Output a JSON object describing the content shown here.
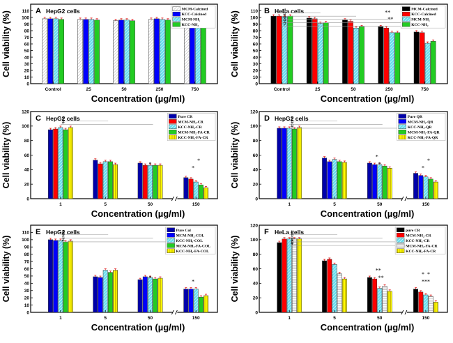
{
  "chart_data": [
    {
      "id": "A",
      "panel_label": "A",
      "title": "HepG2 cells",
      "type": "bar",
      "ylabel": "Cell viability (%)",
      "xlabel": "Concentration (µg/ml)",
      "ylim": [
        0,
        120
      ],
      "yticks": [
        0,
        10,
        20,
        30,
        40,
        50,
        60,
        70,
        80,
        90,
        100,
        110
      ],
      "categories": [
        "Control",
        "25",
        "50",
        "250",
        "750"
      ],
      "axis_break": false,
      "series": [
        {
          "name": "MCM-Calcined",
          "fill": "#ffffff",
          "pattern": "hatch",
          "values": [
            98,
            97,
            95,
            97,
            97
          ]
        },
        {
          "name": "KCC-Calcined",
          "fill": "#0000ff",
          "pattern": "solid",
          "values": [
            98,
            97,
            96,
            98,
            98
          ]
        },
        {
          "name": "MCM-NH₂",
          "fill": "#66ddee",
          "pattern": "hatch",
          "values": [
            98,
            97,
            96,
            97,
            97
          ]
        },
        {
          "name": "KCC-NH₂",
          "fill": "#22cc22",
          "pattern": "solid",
          "values": [
            97,
            96,
            95,
            96,
            96
          ]
        }
      ],
      "annotations": []
    },
    {
      "id": "B",
      "panel_label": "B",
      "title": "HeLa cells",
      "type": "bar",
      "ylabel": "Cell viability (%)",
      "xlabel": "Concentration (µg/ml)",
      "ylim": [
        0,
        120
      ],
      "yticks": [
        0,
        10,
        20,
        30,
        40,
        50,
        60,
        70,
        80,
        90,
        100,
        110
      ],
      "categories": [
        "Control",
        "25",
        "50",
        "250",
        "750"
      ],
      "axis_break": false,
      "series": [
        {
          "name": "MCM-Calcined",
          "fill": "#000000",
          "pattern": "solid",
          "values": [
            102,
            99,
            96,
            86,
            78
          ]
        },
        {
          "name": "KCC-Calcined",
          "fill": "#ff0000",
          "pattern": "solid",
          "values": [
            102,
            98,
            94,
            84,
            77
          ]
        },
        {
          "name": "MCM-NH₂",
          "fill": "#66ddee",
          "pattern": "hatch",
          "values": [
            101,
            91,
            84,
            77,
            61
          ]
        },
        {
          "name": "KCC-NH₂",
          "fill": "#22cc22",
          "pattern": "solid",
          "values": [
            102,
            92,
            86,
            77,
            64
          ]
        }
      ],
      "annotations": [
        "#",
        "#",
        "#",
        "#",
        "#",
        "*",
        "*",
        "*",
        "*",
        "*",
        "*",
        "*",
        "*"
      ]
    },
    {
      "id": "C",
      "panel_label": "C",
      "title": "HepG2 cells",
      "type": "bar",
      "ylabel": "Cell viability (%)",
      "xlabel": "Concentration (µg/ml)",
      "ylim": [
        0,
        120
      ],
      "yticks": [
        0,
        20,
        40,
        60,
        80,
        100,
        120
      ],
      "categories": [
        "1",
        "5",
        "50",
        "150"
      ],
      "axis_break": true,
      "series": [
        {
          "name": "Pure CR",
          "fill": "#0000aa",
          "pattern": "solid",
          "values": [
            95,
            53,
            49,
            29
          ]
        },
        {
          "name": "MCM-NH₂-CR",
          "fill": "#ff0000",
          "pattern": "solid",
          "values": [
            96,
            48,
            46,
            27
          ]
        },
        {
          "name": "KCC-NH₂-CR",
          "fill": "#66ddee",
          "pattern": "hatch",
          "values": [
            98,
            51,
            46,
            23
          ]
        },
        {
          "name": "MCM-NH₂-FA-CR",
          "fill": "#22cc22",
          "pattern": "solid",
          "values": [
            95,
            51,
            46,
            19
          ]
        },
        {
          "name": "KCC-NH₂-FA-CR",
          "fill": "#ffff00",
          "pattern": "vlines",
          "values": [
            98,
            47,
            46,
            15
          ]
        }
      ],
      "annotations": [
        "#",
        "#",
        "*",
        "*",
        "*"
      ]
    },
    {
      "id": "D",
      "panel_label": "D",
      "title": "HepG2 cells",
      "type": "bar",
      "ylabel": "Cell viability (%)",
      "xlabel": "Concentration (µg/ml)",
      "ylim": [
        0,
        120
      ],
      "yticks": [
        0,
        20,
        40,
        60,
        80,
        100,
        120
      ],
      "categories": [
        "1",
        "5",
        "50",
        "150"
      ],
      "axis_break": true,
      "series": [
        {
          "name": "Pure QR",
          "fill": "#0000aa",
          "pattern": "solid",
          "values": [
            97,
            56,
            49,
            35
          ]
        },
        {
          "name": "MCM-NH₂-QR",
          "fill": "#0000ff",
          "pattern": "solid",
          "values": [
            97,
            51,
            47,
            32
          ]
        },
        {
          "name": "KCC-NH₂-QR",
          "fill": "#66ddee",
          "pattern": "hatch",
          "values": [
            97,
            54,
            47,
            30
          ]
        },
        {
          "name": "MCM-NH₂-FA-QR",
          "fill": "#22cc22",
          "pattern": "solid",
          "values": [
            96,
            51,
            45,
            27
          ]
        },
        {
          "name": "KCC-NH₂-FA-QR",
          "fill": "#ffff00",
          "pattern": "vlines",
          "values": [
            98,
            50,
            42,
            23
          ]
        }
      ],
      "annotations": [
        "#",
        "#",
        "#",
        "*",
        "*",
        "*",
        "*"
      ]
    },
    {
      "id": "E",
      "panel_label": "E",
      "title": "HepG2 cells",
      "type": "bar",
      "ylabel": "Cell viability (%)",
      "xlabel": "Concentration (µg/ml)",
      "ylim": [
        0,
        120
      ],
      "yticks": [
        0,
        10,
        20,
        30,
        40,
        50,
        60,
        70,
        80,
        90,
        100,
        110
      ],
      "categories": [
        "1",
        "5",
        "50",
        "150"
      ],
      "axis_break": true,
      "series": [
        {
          "name": "Pure Col",
          "fill": "#0000aa",
          "pattern": "solid",
          "values": [
            100,
            49,
            45,
            32
          ]
        },
        {
          "name": "MCM-NH₂-COL",
          "fill": "#0000ff",
          "pattern": "solid",
          "values": [
            99,
            48,
            49,
            32
          ]
        },
        {
          "name": "KCC-NH₂-COL",
          "fill": "#66ddee",
          "pattern": "hatch",
          "values": [
            99,
            58,
            48,
            32
          ]
        },
        {
          "name": "MCM-NH₂-FA-COL",
          "fill": "#22cc22",
          "pattern": "solid",
          "values": [
            97,
            55,
            46,
            21
          ]
        },
        {
          "name": "KCC-NH₂-FA-COL",
          "fill": "#ffff00",
          "pattern": "vlines",
          "values": [
            98,
            58,
            47,
            23
          ]
        }
      ],
      "annotations": [
        "#",
        "#",
        "#",
        "*",
        "*"
      ]
    },
    {
      "id": "F",
      "panel_label": "F",
      "title": "HeLa cells",
      "type": "bar",
      "ylabel": "Cell viability (%)",
      "xlabel": "Concentration (µg/ml)",
      "ylim": [
        0,
        120
      ],
      "yticks": [
        0,
        20,
        40,
        60,
        80,
        100,
        120
      ],
      "categories": [
        "1",
        "5",
        "50",
        "150"
      ],
      "axis_break": true,
      "series": [
        {
          "name": "pure CR",
          "fill": "#000000",
          "pattern": "solid",
          "values": [
            96,
            71,
            48,
            32
          ]
        },
        {
          "name": "MCM-NH₂-CR",
          "fill": "#ff0000",
          "pattern": "solid",
          "values": [
            101,
            73,
            46,
            28
          ]
        },
        {
          "name": "KCC-NH₂-CR",
          "fill": "#66ddee",
          "pattern": "hatch",
          "values": [
            101,
            66,
            33,
            24
          ]
        },
        {
          "name": "MCM-NH₂-FA-CR",
          "fill": "#ffffff",
          "pattern": "hlines",
          "values": [
            101,
            53,
            36,
            22
          ]
        },
        {
          "name": "KCC-NH₂-FA-CR",
          "fill": "#ffff00",
          "pattern": "vlines",
          "values": [
            101,
            46,
            29,
            14
          ]
        }
      ],
      "annotations": [
        "#",
        "#",
        "#",
        "#",
        "*",
        "*",
        "*",
        "*",
        "*",
        "*",
        "*",
        "*",
        "*"
      ]
    }
  ]
}
